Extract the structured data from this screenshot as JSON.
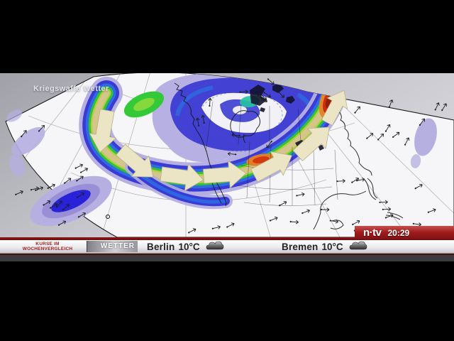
{
  "overlay": {
    "title": "Kriegswaffe Wetter"
  },
  "broadcaster": {
    "name": "n·tv",
    "time": "20:29"
  },
  "ticker": {
    "program_label": {
      "line1": "KURSE IM",
      "line2": "WOCHENVERGLEICH"
    },
    "section": "WETTER",
    "items": [
      {
        "city": "Berlin",
        "temperature": "10°C",
        "condition_icon": "cloud-icon"
      },
      {
        "city": "Bremen",
        "temperature": "10°C",
        "condition_icon": "cloud-icon"
      }
    ]
  },
  "map": {
    "kind": "jet-stream-weather-map",
    "region": "north-america-arctic",
    "flow_arrows_icon": "block-flow-arrow-icon",
    "wind_symbol_icon": "wind-arrow-icon"
  },
  "colors": {
    "brand_red": "#9c1a1a",
    "divider_red": "#7a1212",
    "ticker_text_red": "#9b1c1c",
    "jet_cool_blue": "#3a3ad4",
    "jet_green": "#31c334",
    "jet_warm_orange": "#e07e2a",
    "jet_core_red": "#d3380f",
    "flow_arrow_cream": "#ebe5c5",
    "contour_lavender": "#b5afe1"
  }
}
